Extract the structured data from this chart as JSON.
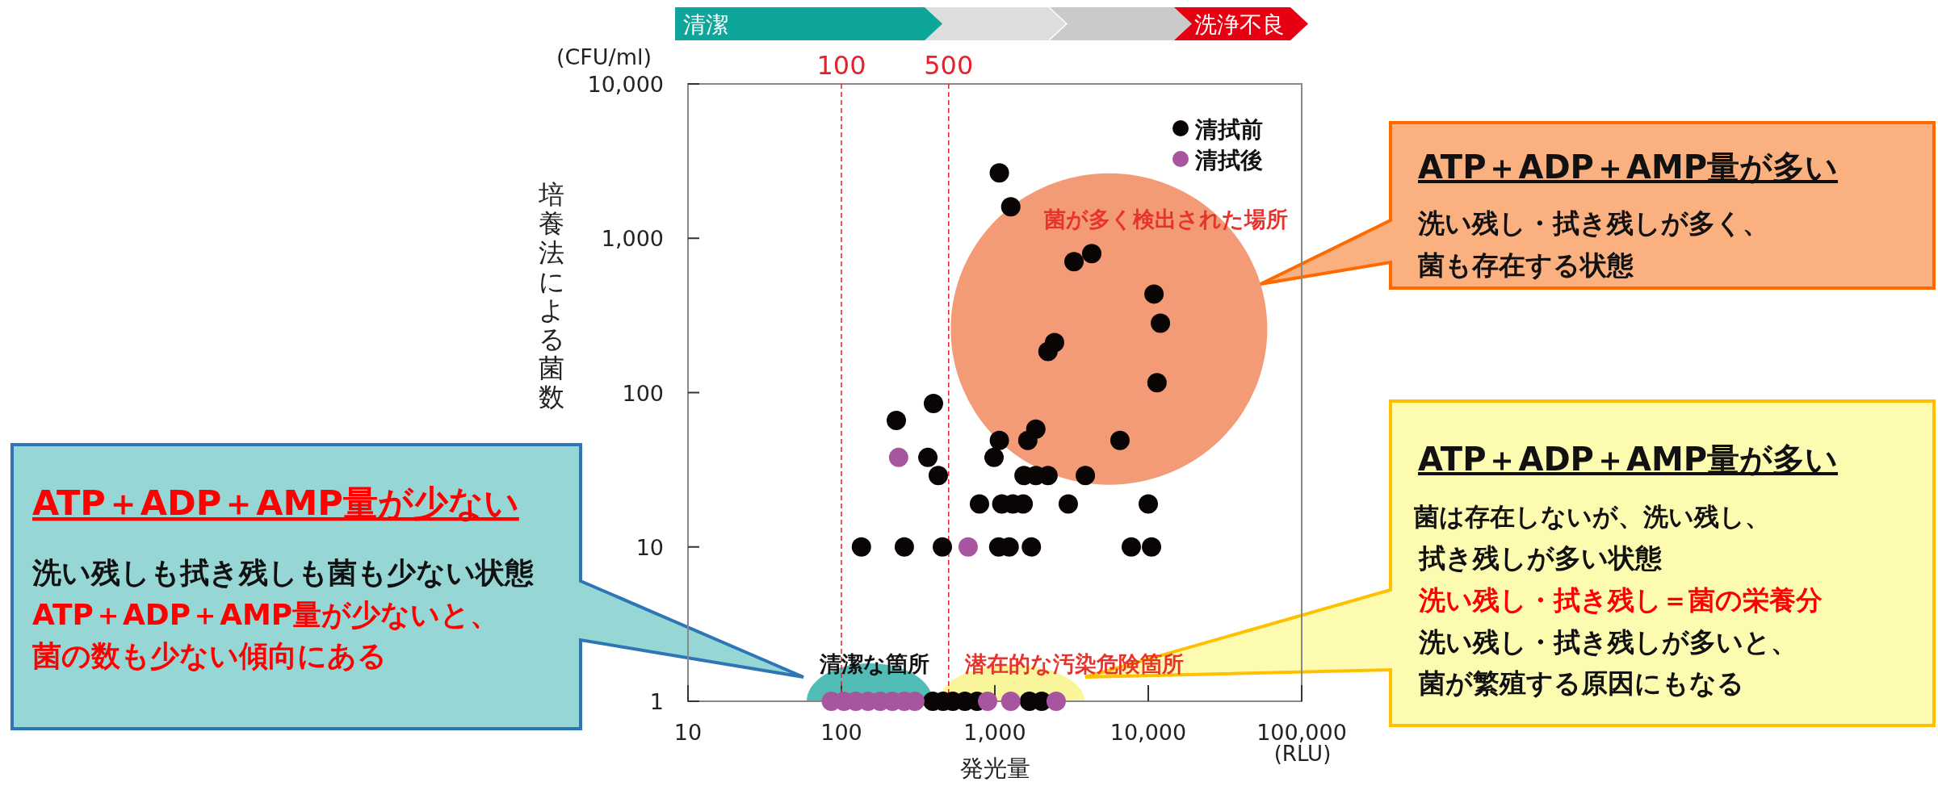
{
  "chart_data": {
    "type": "scatter",
    "xlabel": "発光量",
    "ylabel": "培養法による菌数",
    "xlim": [
      10,
      100000
    ],
    "ylim": [
      1,
      10000
    ],
    "log": "xy",
    "xticks": [
      10,
      100,
      {
        "value": 1000,
        "label": "1,000"
      },
      {
        "value": 10000,
        "label": "10,000"
      },
      {
        "value": 100000,
        "label": "100,000"
      }
    ],
    "yticks": [
      1,
      10,
      100,
      {
        "value": 1000,
        "label": "1,000"
      },
      {
        "value": 10000,
        "label": "10,000"
      }
    ],
    "legend": "top right",
    "marker": "circle",
    "series": [
      {
        "name": "清拭前",
        "color": "#0a0505",
        "x": [
          1070,
          1270,
          3280,
          4280,
          10900,
          12000,
          2450,
          2220,
          11400,
          398,
          228,
          1850,
          1070,
          1640,
          6540,
          366,
          988,
          428,
          1550,
          1850,
          2220,
          3890,
          794,
          1110,
          1310,
          1530,
          3010,
          10000,
          135,
          257,
          455,
          1060,
          1240,
          1730,
          7750,
          10500,
          394,
          460,
          532,
          638,
          766,
          1680,
          2020
        ],
        "values": [
          2650,
          1600,
          705,
          795,
          435,
          282,
          211,
          185,
          116,
          85,
          66,
          58,
          49,
          49,
          49,
          38,
          38,
          29,
          29,
          29,
          29,
          29,
          19,
          19,
          19,
          19,
          19,
          19,
          10,
          10,
          10,
          10,
          10,
          10,
          10,
          10,
          1,
          1,
          1,
          1,
          1,
          1,
          1
        ]
      },
      {
        "name": "清拭後",
        "color": "#a8559f",
        "x": [
          236,
          670,
          86,
          104,
          124,
          149,
          179,
          215,
          257,
          301,
          897,
          1270,
          2510
        ],
        "values": [
          38,
          10,
          1,
          1,
          1,
          1,
          1,
          1,
          1,
          1,
          1,
          1,
          1
        ]
      }
    ],
    "ref_lines": [
      {
        "axis": "x",
        "value": 100,
        "label": "100",
        "color": "#e8202a",
        "line_style": "dashed"
      },
      {
        "axis": "x",
        "value": 500,
        "label": "500",
        "color": "#e8202a",
        "line_style": "dashed"
      }
    ],
    "annotations": [
      "清潔",
      "洗浄不良",
      "(CFU/ml)",
      "(RLU)",
      "菌が多く検出された場所",
      "清潔な箇所",
      "潜在的な汚染危険箇所",
      "ATP＋ADP＋AMP量が少ない",
      "洗い残しも拭き残しも菌も少ない状態",
      "ATP＋ADP＋AMP量が少ないと、",
      "菌の数も少ない傾向にある",
      "ATP＋ADP＋AMP量が多い",
      "洗い残し・拭き残しが多く、",
      "菌も存在する状態",
      "ATP＋ADP＋AMP量が多い",
      "菌は存在しないが、洗い残し、",
      "拭き残しが多い状態",
      "洗い残し・拭き残し＝菌の栄養分",
      "洗い残し・拭き残しが多いと、",
      "菌が繁殖する原因にもなる"
    ]
  }
}
